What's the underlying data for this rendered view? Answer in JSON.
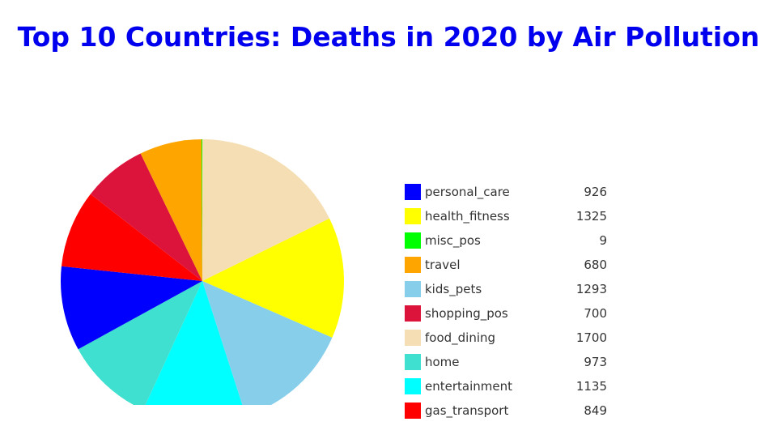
{
  "chart_data": {
    "type": "pie",
    "title": "Top 10 Countries: Deaths in 2020 by Air Pollution",
    "categories": [
      "personal_care",
      "health_fitness",
      "misc_pos",
      "travel",
      "kids_pets",
      "shopping_pos",
      "food_dining",
      "home",
      "entertainment",
      "gas_transport"
    ],
    "values": [
      926,
      1325,
      9,
      680,
      1293,
      700,
      1700,
      973,
      1135,
      849
    ],
    "colors": [
      "#0000ff",
      "#ffff00",
      "#00ff00",
      "#ffa500",
      "#87ceeb",
      "#dc143c",
      "#f5deb3",
      "#40e0d0",
      "#00ffff",
      "#ff0000"
    ],
    "slice_order": [
      6,
      1,
      4,
      8,
      7,
      0,
      9,
      5,
      3,
      2
    ],
    "legend_placement": "right",
    "sorted": true
  }
}
